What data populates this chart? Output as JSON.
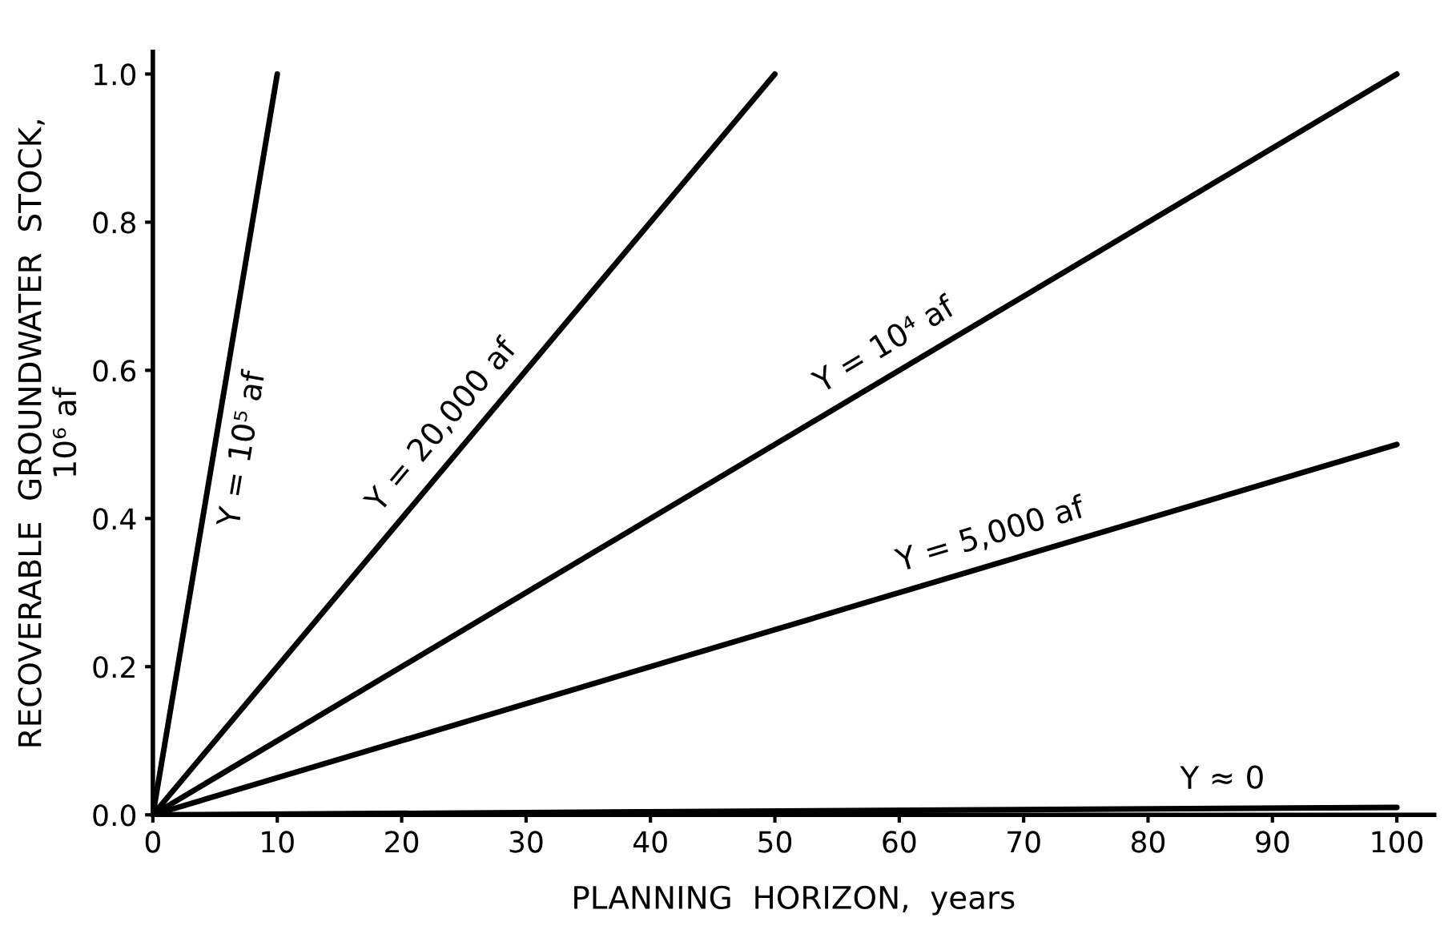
{
  "chart_data": {
    "type": "line",
    "xlabel": "PLANNING  HORIZON,  years",
    "ylabel": "RECOVERABLE  GROUNDWATER  STOCK,\n10⁶ af",
    "xlim": [
      0,
      103
    ],
    "ylim": [
      0,
      1.03
    ],
    "xticks": [
      0,
      10,
      20,
      30,
      40,
      50,
      60,
      70,
      80,
      90,
      100
    ],
    "yticks": [
      {
        "value": 0,
        "label": "0.0"
      },
      0.2,
      0.4,
      0.6,
      0.8,
      {
        "value": 1,
        "label": "1.0"
      }
    ],
    "grid": false,
    "legend": false,
    "marker": "none",
    "line_style": "solid",
    "series": [
      {
        "name": "Y = 10⁵ af",
        "color": "#000000",
        "x": [
          0,
          10
        ],
        "values": [
          0,
          1.0
        ]
      },
      {
        "name": "Y = 20,000 af",
        "color": "#000000",
        "x": [
          0,
          50
        ],
        "values": [
          0,
          1.0
        ]
      },
      {
        "name": "Y = 10⁴ af",
        "color": "#000000",
        "x": [
          0,
          100
        ],
        "values": [
          0,
          1.0
        ]
      },
      {
        "name": "Y = 5,000 af",
        "color": "#000000",
        "x": [
          0,
          100
        ],
        "values": [
          0,
          0.5
        ]
      },
      {
        "name": "Y ≈ 0",
        "color": "#000000",
        "x": [
          0,
          100
        ],
        "values": [
          0,
          0.01
        ]
      }
    ]
  }
}
